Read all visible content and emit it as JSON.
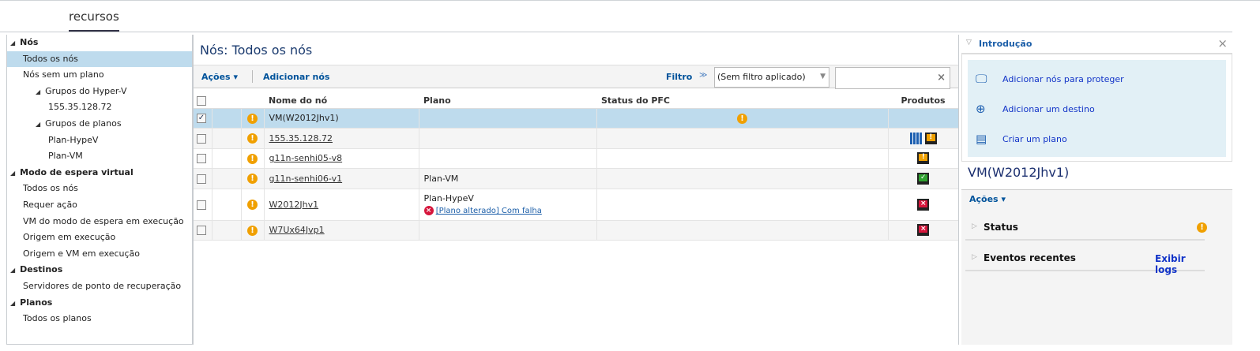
{
  "header": {
    "tab": "recursos"
  },
  "sidebar": {
    "items": [
      {
        "label": "Nós",
        "level": 0
      },
      {
        "label": "Todos os nós",
        "level": 2,
        "selected": true
      },
      {
        "label": "Nós sem um plano",
        "level": 2
      },
      {
        "label": "Grupos do Hyper-V",
        "level": 1
      },
      {
        "label": "155.35.128.72",
        "level": 3
      },
      {
        "label": "Grupos de planos",
        "level": 1
      },
      {
        "label": "Plan-HypeV",
        "level": 3
      },
      {
        "label": "Plan-VM",
        "level": 3
      },
      {
        "label": "Modo de espera virtual",
        "level": 0
      },
      {
        "label": "Todos os nós",
        "level": 2
      },
      {
        "label": "Requer ação",
        "level": 2
      },
      {
        "label": "VM do modo de espera em execução",
        "level": 2
      },
      {
        "label": "Origem em execução",
        "level": 2
      },
      {
        "label": "Origem e VM em execução",
        "level": 2
      },
      {
        "label": "Destinos",
        "level": 0
      },
      {
        "label": "Servidores de ponto de recuperação",
        "level": 2
      },
      {
        "label": "Planos",
        "level": 0
      },
      {
        "label": "Todos os planos",
        "level": 2
      }
    ]
  },
  "main": {
    "title": "Nós:  Todos os nós",
    "toolbar": {
      "actions": "Ações",
      "add_nodes": "Adicionar nós",
      "filter_label": "Filtro",
      "filter_value": "(Sem filtro aplicado)",
      "search_value": ""
    },
    "columns": [
      "Nome do nó",
      "Plano",
      "Status do PFC",
      "Produtos"
    ],
    "rows": [
      {
        "name": "VM(W2012Jhv1)",
        "plan": "",
        "plan_status": "",
        "pfc": "warning",
        "products": [],
        "checked": true,
        "selected": true
      },
      {
        "name": "155.35.128.72",
        "plan": "",
        "plan_status": "",
        "pfc": "",
        "products": [
          "hyperv-grid",
          "monitor-warning"
        ],
        "checked": false
      },
      {
        "name": "g11n-senhi05-v8",
        "plan": "",
        "plan_status": "",
        "pfc": "",
        "products": [
          "monitor-warning"
        ],
        "checked": false
      },
      {
        "name": "g11n-senhi06-v1",
        "plan": "Plan-VM",
        "plan_status": "",
        "pfc": "",
        "products": [
          "monitor-ok"
        ],
        "checked": false
      },
      {
        "name": "W2012Jhv1",
        "plan": "Plan-HypeV",
        "plan_status": "[Plano alterado] Com falha",
        "pfc": "",
        "products": [
          "monitor-error"
        ],
        "checked": false
      },
      {
        "name": "W7Ux64Jvp1",
        "plan": "",
        "plan_status": "",
        "pfc": "",
        "products": [
          "monitor-error"
        ],
        "checked": false
      }
    ]
  },
  "right": {
    "intro_title": "Introdução",
    "intro_links": [
      {
        "label": "Adicionar nós para proteger",
        "icon": "monitor-icon"
      },
      {
        "label": "Adicionar um destino",
        "icon": "target-icon"
      },
      {
        "label": "Criar um plano",
        "icon": "plan-icon"
      }
    ],
    "detail_title": "VM(W2012Jhv1)",
    "actions": "Ações",
    "status": "Status",
    "recent_events": "Eventos recentes",
    "view_logs": "Exibir logs"
  },
  "colors": {
    "accent": "#00539b",
    "selected": "#bedbed",
    "warning": "#f0a000",
    "error": "#d6163c"
  }
}
